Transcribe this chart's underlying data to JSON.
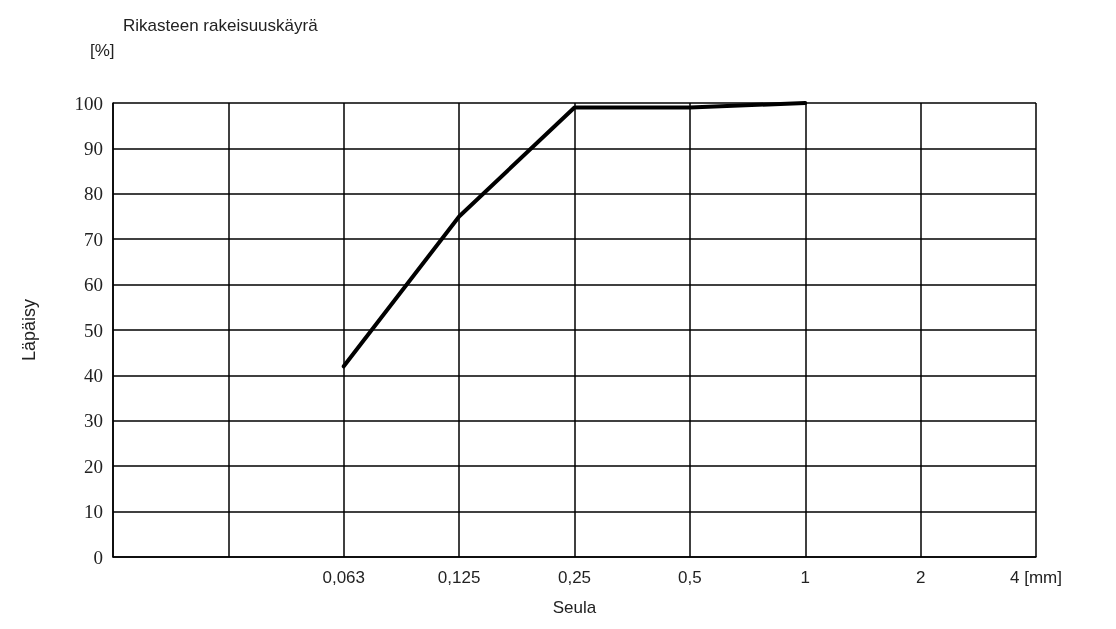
{
  "chart_data": {
    "type": "line",
    "title": "Rikasteen rakeisuuskäyrä",
    "xlabel": "Seula",
    "ylabel": "Läpäisy",
    "annotations": [
      "[%]"
    ],
    "categories": [
      null,
      null,
      "0,063",
      "0,125",
      "0,25",
      "0,5",
      "1",
      "2",
      "4 [mm]"
    ],
    "series": [
      {
        "color": "#000000",
        "values": [
          null,
          null,
          42,
          75,
          99,
          99,
          100,
          null,
          null
        ]
      }
    ],
    "ylim": [
      0,
      100
    ],
    "yticks": [
      0,
      10,
      20,
      30,
      40,
      50,
      60,
      70,
      80,
      90,
      100
    ],
    "grid": true,
    "marker": "none",
    "line_style": "solid"
  }
}
